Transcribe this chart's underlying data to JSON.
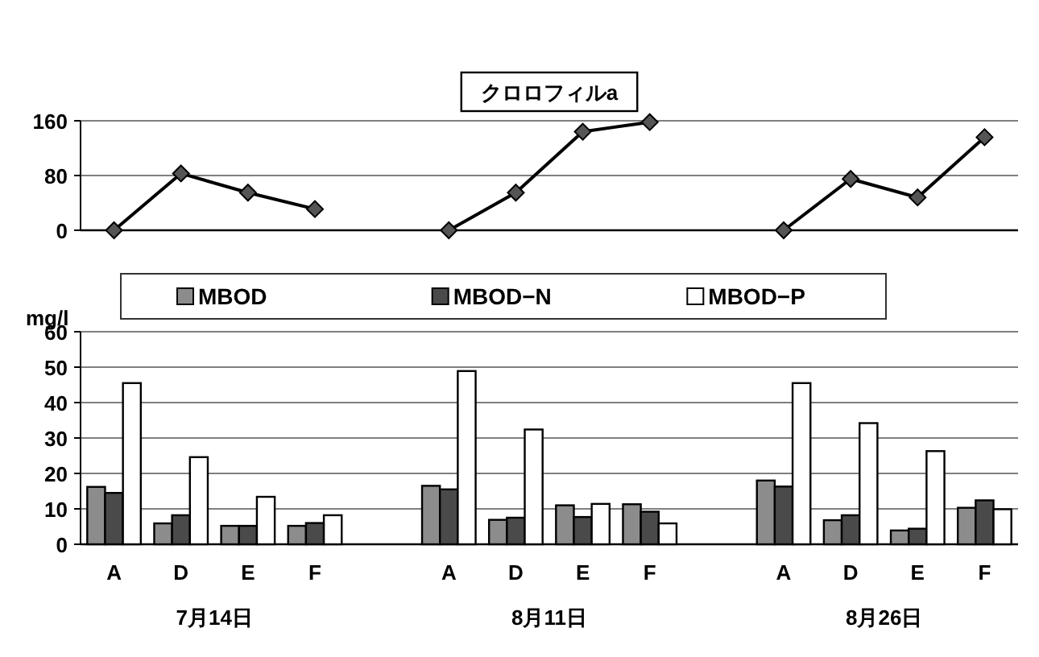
{
  "chart_data": [
    {
      "type": "line",
      "title": "クロロフィルa",
      "categories": [
        null,
        null,
        null,
        null,
        null,
        null,
        null,
        null,
        null,
        null,
        null,
        null,
        null,
        null
      ],
      "series": [
        {
          "color": "#555555",
          "values": [
            0,
            83,
            55,
            31,
            null,
            0,
            55,
            144,
            158,
            null,
            0,
            75,
            48,
            136
          ]
        }
      ],
      "ylim": [
        0,
        160
      ],
      "yticks": [
        0,
        80,
        160
      ],
      "grid": "y",
      "tick_labels": "y",
      "marker": "diamond",
      "line_style": "solid"
    },
    {
      "type": "bar",
      "ylabel": "mg/l",
      "categories": [
        "A",
        "D",
        "E",
        "F",
        null,
        "A",
        "D",
        "E",
        "F",
        null,
        "A",
        "D",
        "E",
        "F"
      ],
      "series": [
        {
          "name": "MBOD",
          "color": "#8c8c8c",
          "values": [
            16.2,
            5.9,
            5.2,
            5.2,
            null,
            16.5,
            6.9,
            11,
            11.3,
            null,
            18,
            6.8,
            3.9,
            10.3
          ]
        },
        {
          "name": "MBOD−N",
          "color": "#4a4a4a",
          "values": [
            14.5,
            8.2,
            5.2,
            6,
            null,
            15.5,
            7.5,
            7.7,
            9.2,
            null,
            16.3,
            8.2,
            4.4,
            12.4
          ]
        },
        {
          "name": "MBOD−P",
          "color": "#ffffff",
          "values": [
            45.5,
            24.6,
            13.4,
            8.2,
            null,
            48.9,
            32.4,
            11.4,
            5.9,
            null,
            45.5,
            34.2,
            26.3,
            9.9
          ]
        }
      ],
      "ylim": [
        0,
        60
      ],
      "yticks": [
        0,
        10,
        20,
        30,
        40,
        50,
        60
      ],
      "grid": "y",
      "legend": "top",
      "annotations": [
        "7月14日",
        "8月11日",
        "8月26日"
      ]
    }
  ]
}
